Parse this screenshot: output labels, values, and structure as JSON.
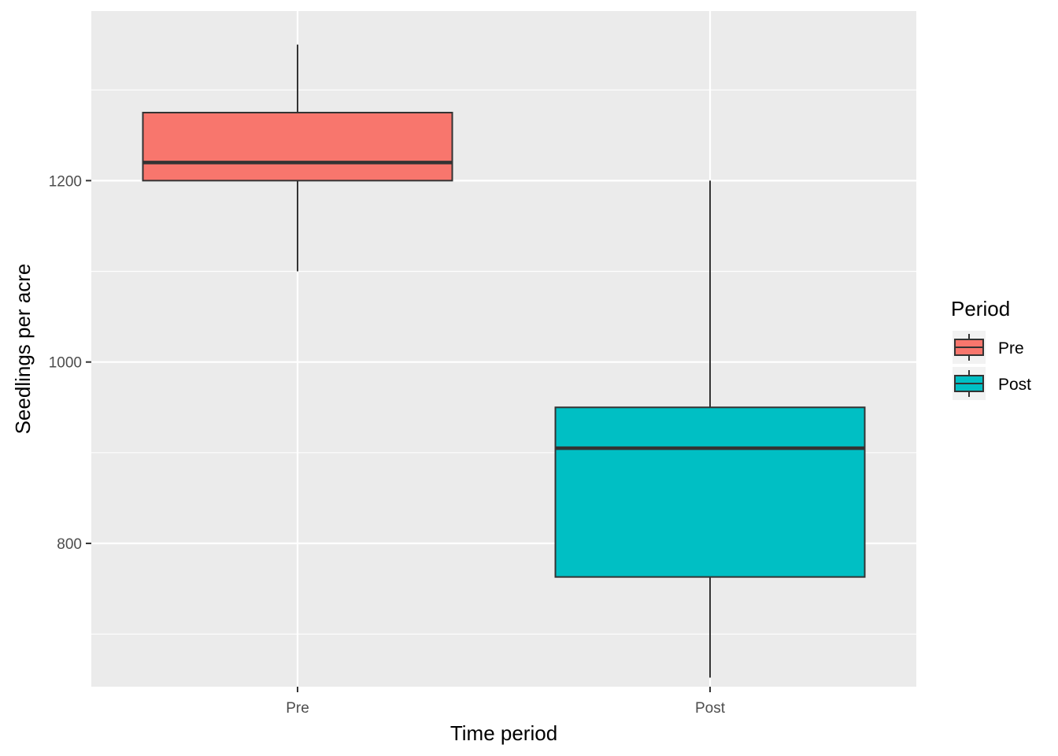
{
  "chart_data": {
    "type": "boxplot",
    "title": "",
    "xlabel": "Time period",
    "ylabel": "Seedlings per acre",
    "categories": [
      "Pre",
      "Post"
    ],
    "ylim": [
      642,
      1387
    ],
    "yticks": [
      800,
      1000,
      1200
    ],
    "grid": true,
    "legend": {
      "title": "Period",
      "position": "right",
      "entries": [
        {
          "label": "Pre",
          "color": "#F8766D"
        },
        {
          "label": "Post",
          "color": "#00BFC4"
        }
      ]
    },
    "series": [
      {
        "category": "Pre",
        "color": "#F8766D",
        "whisker_low": 1100,
        "q1": 1200,
        "median": 1220,
        "q3": 1275,
        "whisker_high": 1350
      },
      {
        "category": "Post",
        "color": "#00BFC4",
        "whisker_low": 652,
        "q1": 763,
        "median": 905,
        "q3": 950,
        "whisker_high": 1200
      }
    ],
    "style": {
      "panel_bg": "#EBEBEB",
      "grid_color": "#FFFFFF",
      "box_outline": "#333333"
    }
  }
}
